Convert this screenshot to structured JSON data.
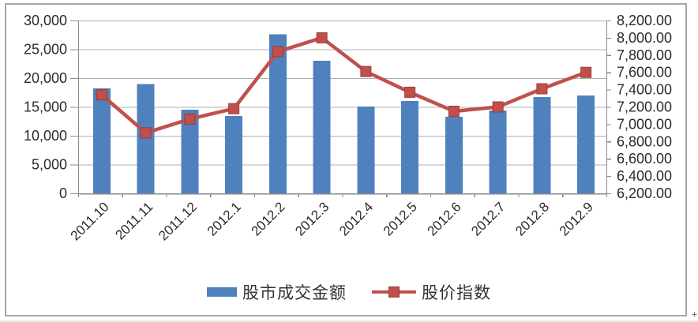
{
  "page": {
    "corner_mark": "+"
  },
  "chart_data": {
    "type": "combo",
    "title": "",
    "categories": [
      "2011.10",
      "2011.11",
      "2011.12",
      "2012.1",
      "2012.2",
      "2012.3",
      "2012.4",
      "2012.5",
      "2012.6",
      "2012.7",
      "2012.8",
      "2012.9"
    ],
    "series": [
      {
        "name": "股市成交金额",
        "type": "bar",
        "axis": "left",
        "color": "#4f81bd",
        "values": [
          18200,
          19000,
          14500,
          13400,
          27600,
          23000,
          15100,
          16000,
          13300,
          14400,
          16700,
          17000
        ]
      },
      {
        "name": "股价指数",
        "type": "line",
        "axis": "right",
        "color": "#c0504d",
        "marker": "square",
        "marker_border_color": "#9c3b38",
        "values": [
          7340,
          6900,
          7060,
          7180,
          7840,
          8000,
          7610,
          7370,
          7150,
          7200,
          7410,
          7600
        ]
      }
    ],
    "left_axis": {
      "min": 0,
      "max": 30000,
      "step": 5000,
      "tick_labels": [
        "0",
        "5,000",
        "10,000",
        "15,000",
        "20,000",
        "25,000",
        "30,000"
      ]
    },
    "right_axis": {
      "min": 6200,
      "max": 8200,
      "step": 200,
      "tick_labels": [
        "6,200.00",
        "6,400.00",
        "6,600.00",
        "6,800.00",
        "7,000.00",
        "7,200.00",
        "7,400.00",
        "7,600.00",
        "7,800.00",
        "8,000.00",
        "8,200.00"
      ]
    },
    "grid": true,
    "legend_position": "bottom",
    "colors": {
      "gridline": "#b0b0b0",
      "axis_line": "#8a8a8a",
      "frame_border": "#a6a6a6",
      "text": "#2b2b2b"
    }
  }
}
